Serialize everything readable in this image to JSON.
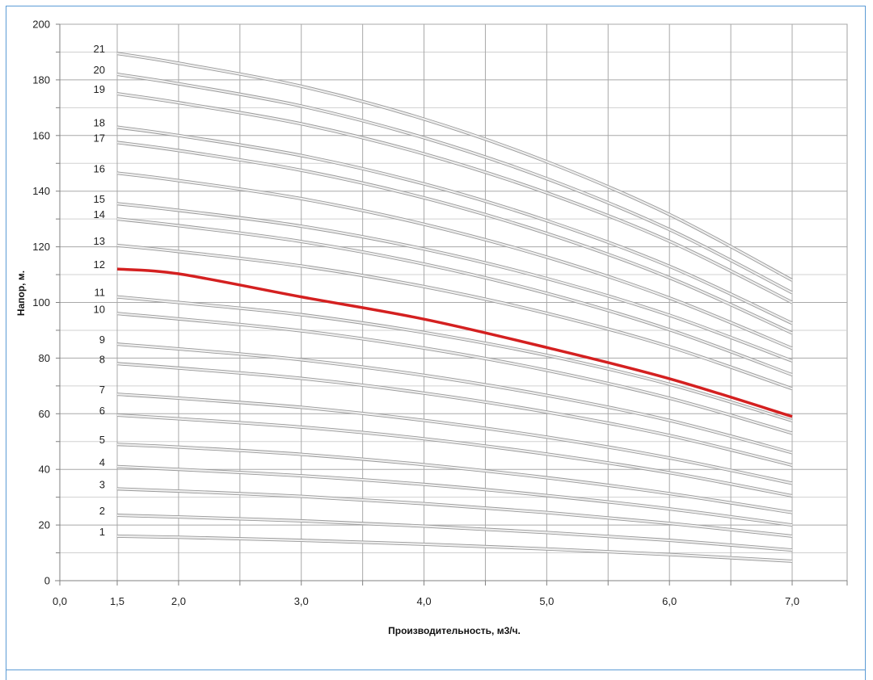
{
  "chart_data": {
    "type": "line",
    "xlabel": "Производительность, м3/ч.",
    "ylabel": "Напор, м.",
    "xlim": [
      0,
      7.0
    ],
    "ylim": [
      0,
      200
    ],
    "x_ticks": [
      "0,0",
      "1,5",
      "2,0",
      "3,0",
      "4,0",
      "5,0",
      "6,0",
      "7,0"
    ],
    "x_tick_values": [
      0,
      1.5,
      2.0,
      3.0,
      4.0,
      5.0,
      6.0,
      7.0
    ],
    "y_ticks": [
      "0",
      "20",
      "40",
      "60",
      "80",
      "100",
      "120",
      "140",
      "160",
      "180",
      "200"
    ],
    "y_tick_values": [
      0,
      20,
      40,
      60,
      80,
      100,
      120,
      140,
      160,
      180,
      200
    ],
    "grid": true,
    "highlight_color": "#d42020",
    "curve_color": "#c8c8c8",
    "x": [
      1.5,
      2.0,
      3.0,
      4.0,
      5.0,
      6.0,
      7.0
    ],
    "series": [
      {
        "name": "1",
        "values": [
          16,
          15.6,
          14.5,
          13.1,
          11.4,
          9.4,
          7
        ]
      },
      {
        "name": "2",
        "values": [
          23.5,
          22.9,
          21.5,
          19.6,
          17.3,
          14.5,
          11
        ]
      },
      {
        "name": "3",
        "values": [
          33,
          32.2,
          30.3,
          27.7,
          24.5,
          20.6,
          16
        ]
      },
      {
        "name": "4",
        "values": [
          41,
          40,
          37.7,
          34.6,
          30.6,
          25.8,
          20
        ]
      },
      {
        "name": "5",
        "values": [
          49,
          48,
          45.4,
          41.7,
          37,
          31.3,
          24.5
        ]
      },
      {
        "name": "6",
        "values": [
          59.5,
          58.2,
          55.2,
          51,
          45.5,
          38.8,
          30.5
        ]
      },
      {
        "name": "7",
        "values": [
          67,
          65.6,
          62.3,
          57.6,
          51.6,
          44.1,
          35
        ]
      },
      {
        "name": "8",
        "values": [
          78,
          76.4,
          72.7,
          67.4,
          60.6,
          52.2,
          41.5
        ]
      },
      {
        "name": "9",
        "values": [
          85,
          83.3,
          79.4,
          73.8,
          66.6,
          57.6,
          46
        ]
      },
      {
        "name": "10",
        "values": [
          96,
          94.1,
          89.8,
          83.6,
          75.6,
          65.6,
          53
        ]
      },
      {
        "name": "11",
        "values": [
          102,
          100,
          95.6,
          89.2,
          81,
          70.6,
          57.5
        ]
      },
      {
        "name": "12",
        "values": [
          112,
          110.3,
          102,
          94,
          83.8,
          72.6,
          59
        ]
      },
      {
        "name": "13",
        "values": [
          120.5,
          118.3,
          113.1,
          105.7,
          96.1,
          84.1,
          69
        ]
      },
      {
        "name": "14",
        "values": [
          130,
          127.6,
          121.9,
          113.8,
          103.3,
          90.2,
          74
        ]
      },
      {
        "name": "15",
        "values": [
          135.5,
          133.1,
          127.4,
          119.2,
          108.6,
          95.4,
          79
        ]
      },
      {
        "name": "16",
        "values": [
          146.5,
          143.8,
          137.3,
          128.1,
          116.3,
          101.6,
          83.5
        ]
      },
      {
        "name": "17",
        "values": [
          157.5,
          154.6,
          147.5,
          137.6,
          124.8,
          108.9,
          89
        ]
      },
      {
        "name": "18",
        "values": [
          163,
          160,
          152.8,
          142.6,
          129.4,
          113,
          92.5
        ]
      },
      {
        "name": "19",
        "values": [
          175,
          171.8,
          164.2,
          153.4,
          139.4,
          122,
          100
        ]
      },
      {
        "name": "20",
        "values": [
          182,
          178.6,
          170.6,
          159.2,
          144.5,
          126.2,
          103.5
        ]
      },
      {
        "name": "21",
        "values": [
          189.5,
          186,
          177.7,
          165.9,
          150.6,
          131.6,
          108
        ]
      }
    ],
    "highlighted_series": "12"
  }
}
